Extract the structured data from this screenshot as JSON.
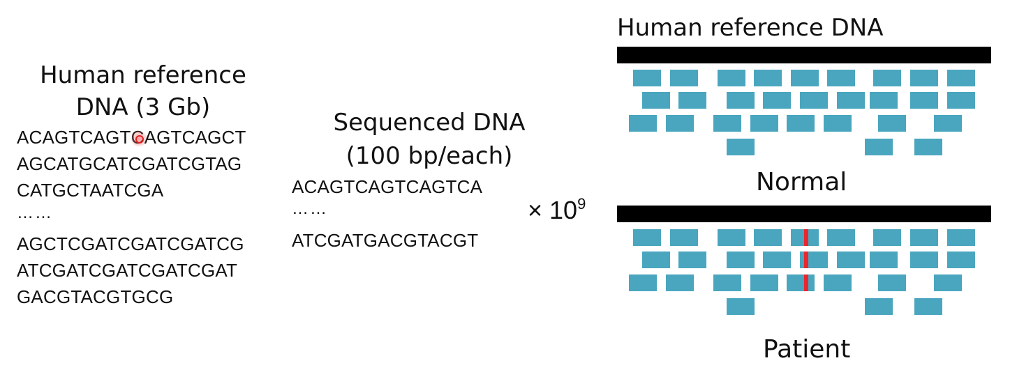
{
  "left": {
    "title_line1": "Human reference",
    "title_line2": "DNA (3 Gb)",
    "lines_top": [
      "ACAGTCAGTCAGTCAGCT",
      "AGCATGCATCGATCGTAG",
      "CATGCTAATCGA"
    ],
    "ellipsis": "……",
    "lines_bottom": [
      "AGCTCGATCGATCGATCG",
      "ATCGATCGATCGATCGAT",
      "GACGTACGTGCG"
    ]
  },
  "middle": {
    "title_line1": "Sequenced DNA",
    "title_line2": "(100 bp/each)",
    "line1": "ACAGTCAGTCAGTCA",
    "ellipsis": "……",
    "line2": "ATCGATGACGTACGT",
    "multiplier": "× 10",
    "exponent": "9"
  },
  "right": {
    "title": "Human reference DNA",
    "normal_label": "Normal",
    "patient_label": "Patient"
  },
  "colors": {
    "read": "#4aa6bf",
    "mutation": "#e8282c",
    "reference_bar": "#000000",
    "cursor": "#e02020"
  }
}
